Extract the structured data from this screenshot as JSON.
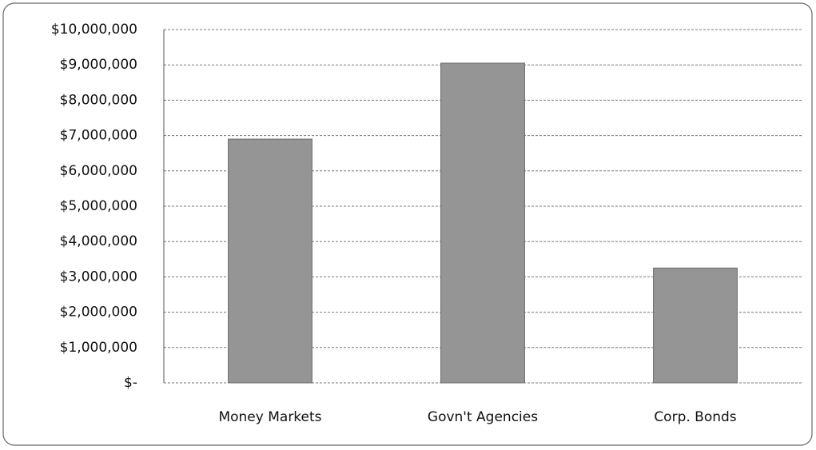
{
  "chart_data": {
    "type": "bar",
    "categories": [
      "Money Markets",
      "Govn't Agencies",
      "Corp. Bonds"
    ],
    "values": [
      6900000,
      9050000,
      3250000
    ],
    "color": "#959595",
    "ylim": [
      0,
      10000000
    ],
    "yticks": [
      {
        "value": 0,
        "label": "$-"
      },
      {
        "value": 1000000,
        "label": "$1,000,000"
      },
      {
        "value": 2000000,
        "label": "$2,000,000"
      },
      {
        "value": 3000000,
        "label": "$3,000,000"
      },
      {
        "value": 4000000,
        "label": "$4,000,000"
      },
      {
        "value": 5000000,
        "label": "$5,000,000"
      },
      {
        "value": 6000000,
        "label": "$6,000,000"
      },
      {
        "value": 7000000,
        "label": "$7,000,000"
      },
      {
        "value": 8000000,
        "label": "$8,000,000"
      },
      {
        "value": 9000000,
        "label": "$9,000,000"
      },
      {
        "value": 10000000,
        "label": "$10,000,000"
      }
    ],
    "grid": true
  }
}
